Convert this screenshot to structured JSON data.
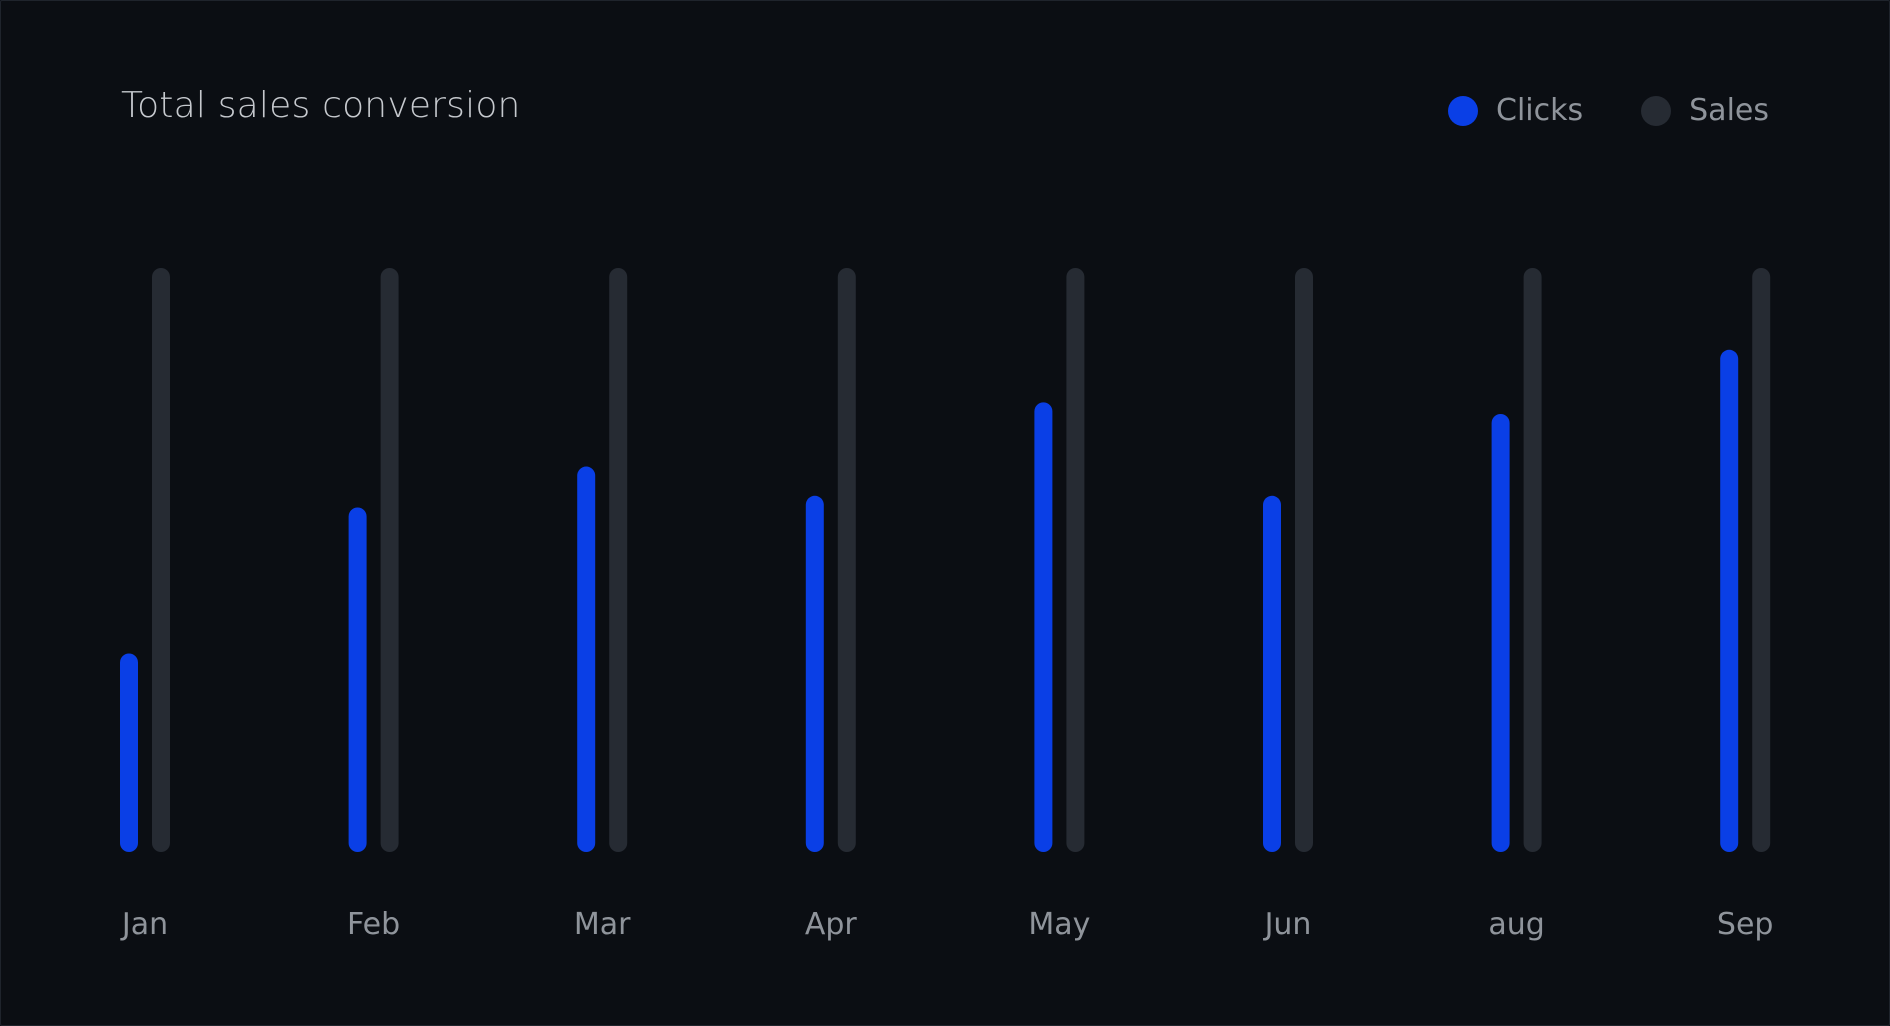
{
  "chart_data": {
    "type": "bar",
    "title": "Total sales conversion",
    "categories": [
      "Jan",
      "Feb",
      "Mar",
      "Apr",
      "May",
      "Jun",
      "aug",
      "Sep"
    ],
    "series": [
      {
        "name": "Clicks",
        "color": "#0a3fe6",
        "values": [
          34,
          59,
          66,
          61,
          77,
          61,
          75,
          86
        ]
      },
      {
        "name": "Sales",
        "color": "#262b33",
        "values": [
          100,
          100,
          100,
          100,
          100,
          100,
          100,
          100
        ]
      }
    ],
    "ylim": [
      0,
      100
    ],
    "grid": false,
    "legend_position": "top-right"
  },
  "legend": [
    {
      "label": "Clicks",
      "color": "#0a3fe6"
    },
    {
      "label": "Sales",
      "color": "#262b33"
    }
  ]
}
